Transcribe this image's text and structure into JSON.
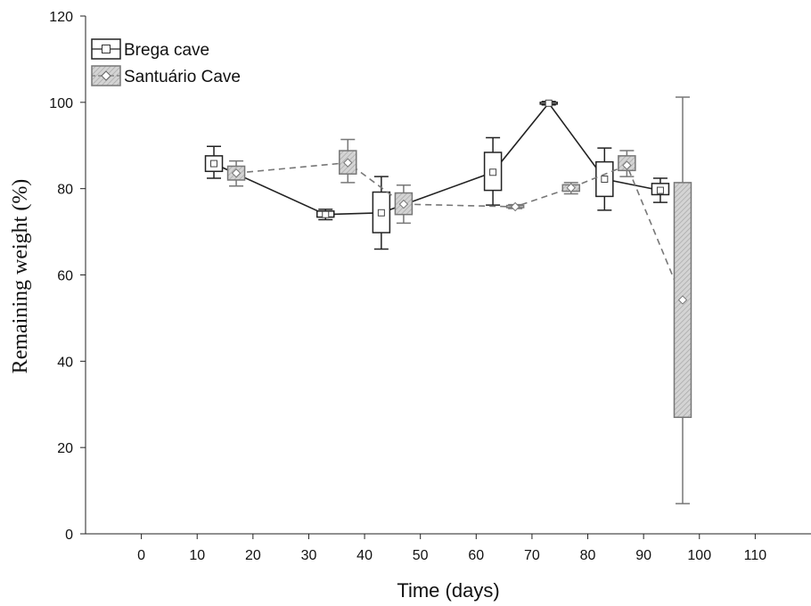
{
  "chart_data": {
    "type": "box",
    "xlabel": "Time (days)",
    "ylabel": "Remaining weight (%)",
    "xlim": [
      -10,
      120
    ],
    "ylim": [
      0,
      120
    ],
    "x_ticks": [
      0,
      10,
      20,
      30,
      40,
      50,
      60,
      70,
      80,
      90,
      100,
      110
    ],
    "y_ticks": [
      0,
      20,
      40,
      60,
      80,
      100,
      120
    ],
    "grid": false,
    "legend_position": "top-left",
    "series": [
      {
        "name": "Brega cave",
        "style": "solid",
        "color": "#222222",
        "fill": "#ffffff",
        "marker": "square",
        "points": [
          {
            "x": 13,
            "mean": 85.8,
            "box_low": 84.0,
            "box_high": 87.6,
            "whisker_low": 82.4,
            "whisker_high": 89.8
          },
          {
            "x": 33,
            "mean": 74.0,
            "box_low": 73.4,
            "box_high": 74.8,
            "whisker_low": 72.8,
            "whisker_high": 75.2
          },
          {
            "x": 43,
            "mean": 74.4,
            "box_low": 69.8,
            "box_high": 79.2,
            "whisker_low": 66.0,
            "whisker_high": 82.8
          },
          {
            "x": 63,
            "mean": 83.8,
            "box_low": 79.6,
            "box_high": 88.4,
            "whisker_low": 76.2,
            "whisker_high": 91.8
          },
          {
            "x": 73,
            "mean": 99.8,
            "box_low": 99.6,
            "box_high": 100.0,
            "whisker_low": 99.4,
            "whisker_high": 100.2
          },
          {
            "x": 83,
            "mean": 82.2,
            "box_low": 78.2,
            "box_high": 86.2,
            "whisker_low": 75.0,
            "whisker_high": 89.4
          },
          {
            "x": 93,
            "mean": 79.6,
            "box_low": 78.6,
            "box_high": 81.2,
            "whisker_low": 76.8,
            "whisker_high": 82.4
          }
        ]
      },
      {
        "name": "Santuário Cave",
        "style": "dashed",
        "color": "#777777",
        "fill": "#cfcfcf",
        "marker": "diamond",
        "points": [
          {
            "x": 17,
            "mean": 83.6,
            "box_low": 82.0,
            "box_high": 85.2,
            "whisker_low": 80.6,
            "whisker_high": 86.4
          },
          {
            "x": 37,
            "mean": 86.0,
            "box_low": 83.4,
            "box_high": 88.8,
            "whisker_low": 81.4,
            "whisker_high": 91.4
          },
          {
            "x": 47,
            "mean": 76.4,
            "box_low": 74.0,
            "box_high": 79.0,
            "whisker_low": 72.0,
            "whisker_high": 80.8
          },
          {
            "x": 67,
            "mean": 75.8,
            "box_low": 75.6,
            "box_high": 76.1,
            "whisker_low": 75.4,
            "whisker_high": 76.3
          },
          {
            "x": 77,
            "mean": 80.2,
            "box_low": 79.4,
            "box_high": 80.9,
            "whisker_low": 78.8,
            "whisker_high": 81.4
          },
          {
            "x": 87,
            "mean": 85.4,
            "box_low": 84.2,
            "box_high": 87.6,
            "whisker_low": 82.8,
            "whisker_high": 88.8
          },
          {
            "x": 97,
            "mean": 54.2,
            "box_low": 27.0,
            "box_high": 81.4,
            "whisker_low": 7.0,
            "whisker_high": 101.2
          }
        ]
      }
    ]
  }
}
